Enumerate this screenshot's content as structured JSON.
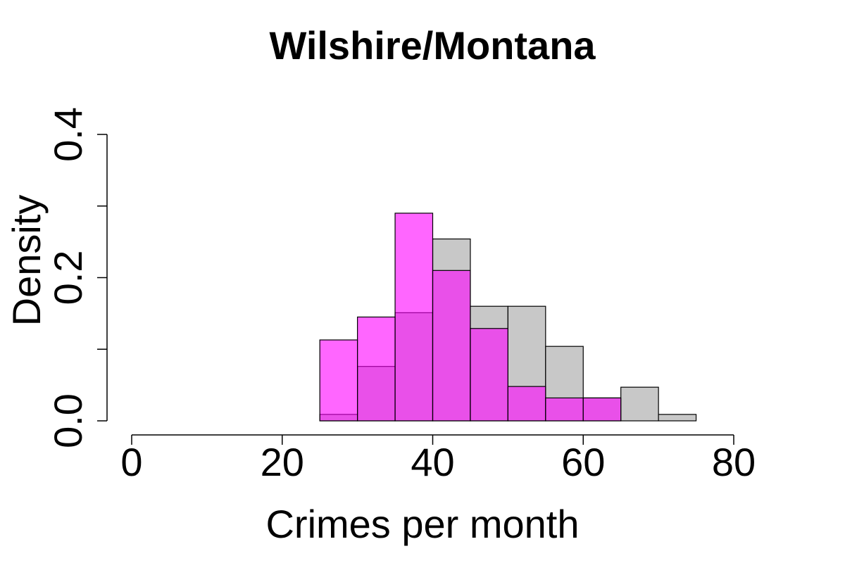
{
  "chart_data": {
    "type": "histogram",
    "title": "Wilshire/Montana",
    "xlabel": "Crimes per month",
    "ylabel": "Density",
    "xlim": [
      0,
      80
    ],
    "ylim": [
      0,
      0.4
    ],
    "x_ticks": [
      0,
      20,
      40,
      60,
      80
    ],
    "x_tick_labels": [
      "0",
      "20",
      "40",
      "60",
      "80"
    ],
    "y_ticks": [
      0,
      0.1,
      0.2,
      0.3,
      0.4
    ],
    "y_tick_labels": [
      "0.0",
      "",
      "0.2",
      "",
      "0.4"
    ],
    "grid": false,
    "legend": "none",
    "bin_edges": [
      0,
      5,
      10,
      15,
      20,
      25,
      30,
      35,
      40,
      45,
      50,
      55,
      60,
      65,
      70,
      75
    ],
    "series": [
      {
        "color": "#c8c8c8",
        "values": [
          0,
          0,
          0,
          0,
          0,
          0.009,
          0.076,
          0.151,
          0.254,
          0.16,
          0.16,
          0.104,
          0.032,
          0.047,
          0.009
        ]
      },
      {
        "color": "#ff00ff",
        "opacity": 0.6,
        "values": [
          0,
          0,
          0,
          0,
          0,
          0.113,
          0.145,
          0.29,
          0.21,
          0.129,
          0.048,
          0.032,
          0.032,
          0,
          0
        ]
      }
    ]
  }
}
